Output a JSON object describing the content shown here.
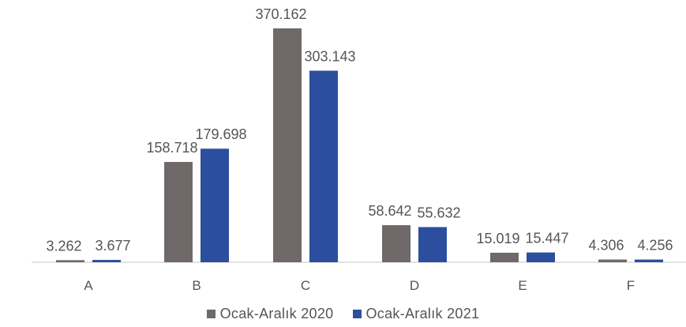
{
  "chart_data": {
    "type": "bar",
    "categories": [
      "A",
      "B",
      "C",
      "D",
      "E",
      "F"
    ],
    "series": [
      {
        "name": "Ocak-Aralık 2020",
        "color": "#6f6a69",
        "values": [
          3262,
          158718,
          370162,
          58642,
          15019,
          4306
        ],
        "labels": [
          "3.262",
          "158.718",
          "370.162",
          "58.642",
          "15.019",
          "4.306"
        ]
      },
      {
        "name": "Ocak-Aralık 2021",
        "color": "#2b4f9e",
        "values": [
          3677,
          179698,
          303143,
          55632,
          15447,
          4256
        ],
        "labels": [
          "3.677",
          "179.698",
          "303.143",
          "55.632",
          "15.447",
          "4.256"
        ]
      }
    ],
    "ylim": [
      0,
      400000
    ],
    "grid": false,
    "legend_position": "bottom"
  }
}
